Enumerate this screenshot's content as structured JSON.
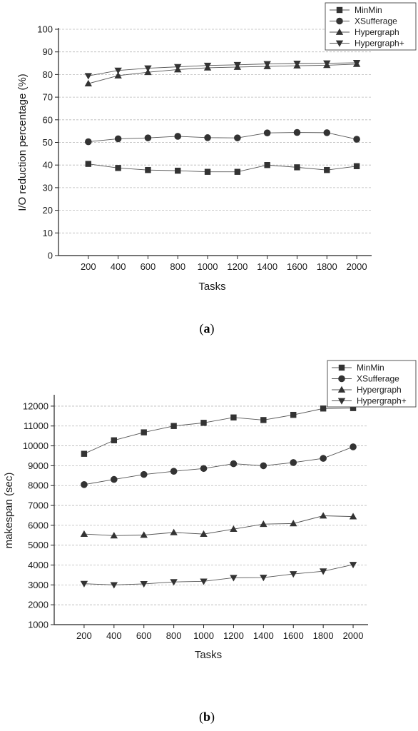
{
  "chart_data": [
    {
      "type": "line",
      "caption_letter": "a",
      "title": "",
      "xlabel": "Tasks",
      "ylabel": "I/O reduction percentage (%)",
      "x": [
        200,
        400,
        600,
        800,
        1000,
        1200,
        1400,
        1600,
        1800,
        2000
      ],
      "ylim": [
        0,
        100
      ],
      "yticks": [
        0,
        10,
        20,
        30,
        40,
        50,
        60,
        70,
        80,
        90,
        100
      ],
      "grid": true,
      "legend_position": "top-right",
      "series": [
        {
          "name": "MinMin",
          "marker": "square",
          "values": [
            40.5,
            38.7,
            37.8,
            37.5,
            37.0,
            37.0,
            40.0,
            39.0,
            37.8,
            39.5
          ]
        },
        {
          "name": "XSufferage",
          "marker": "circle",
          "values": [
            50.3,
            51.6,
            52.0,
            52.7,
            52.1,
            52.0,
            54.2,
            54.4,
            54.3,
            51.4
          ]
        },
        {
          "name": "Hypergraph",
          "marker": "triangle-up",
          "values": [
            76.0,
            79.5,
            81.0,
            82.2,
            83.0,
            83.3,
            83.6,
            83.9,
            84.1,
            84.6
          ]
        },
        {
          "name": "Hypergraph+",
          "marker": "triangle-down",
          "values": [
            79.4,
            81.8,
            82.8,
            83.4,
            84.0,
            84.3,
            84.7,
            84.9,
            85.0,
            85.2
          ]
        }
      ]
    },
    {
      "type": "line",
      "caption_letter": "b",
      "title": "",
      "xlabel": "Tasks",
      "ylabel": "makespan (sec)",
      "x": [
        200,
        400,
        600,
        800,
        1000,
        1200,
        1400,
        1600,
        1800,
        2000
      ],
      "ylim": [
        1000,
        12500
      ],
      "yticks": [
        1000,
        2000,
        3000,
        4000,
        5000,
        6000,
        7000,
        8000,
        9000,
        10000,
        11000,
        12000
      ],
      "grid": true,
      "legend_position": "top-right",
      "series": [
        {
          "name": "MinMin",
          "marker": "square",
          "values": [
            9600,
            10280,
            10680,
            11000,
            11160,
            11430,
            11300,
            11560,
            11880,
            11900
          ]
        },
        {
          "name": "XSufferage",
          "marker": "circle",
          "values": [
            8050,
            8310,
            8560,
            8720,
            8860,
            9100,
            9000,
            9160,
            9370,
            9950
          ]
        },
        {
          "name": "Hypergraph",
          "marker": "triangle-up",
          "values": [
            5560,
            5480,
            5510,
            5640,
            5560,
            5810,
            6060,
            6090,
            6480,
            6440
          ]
        },
        {
          "name": "Hypergraph+",
          "marker": "triangle-down",
          "values": [
            3060,
            3000,
            3050,
            3150,
            3180,
            3360,
            3370,
            3550,
            3690,
            4020
          ]
        }
      ]
    }
  ]
}
